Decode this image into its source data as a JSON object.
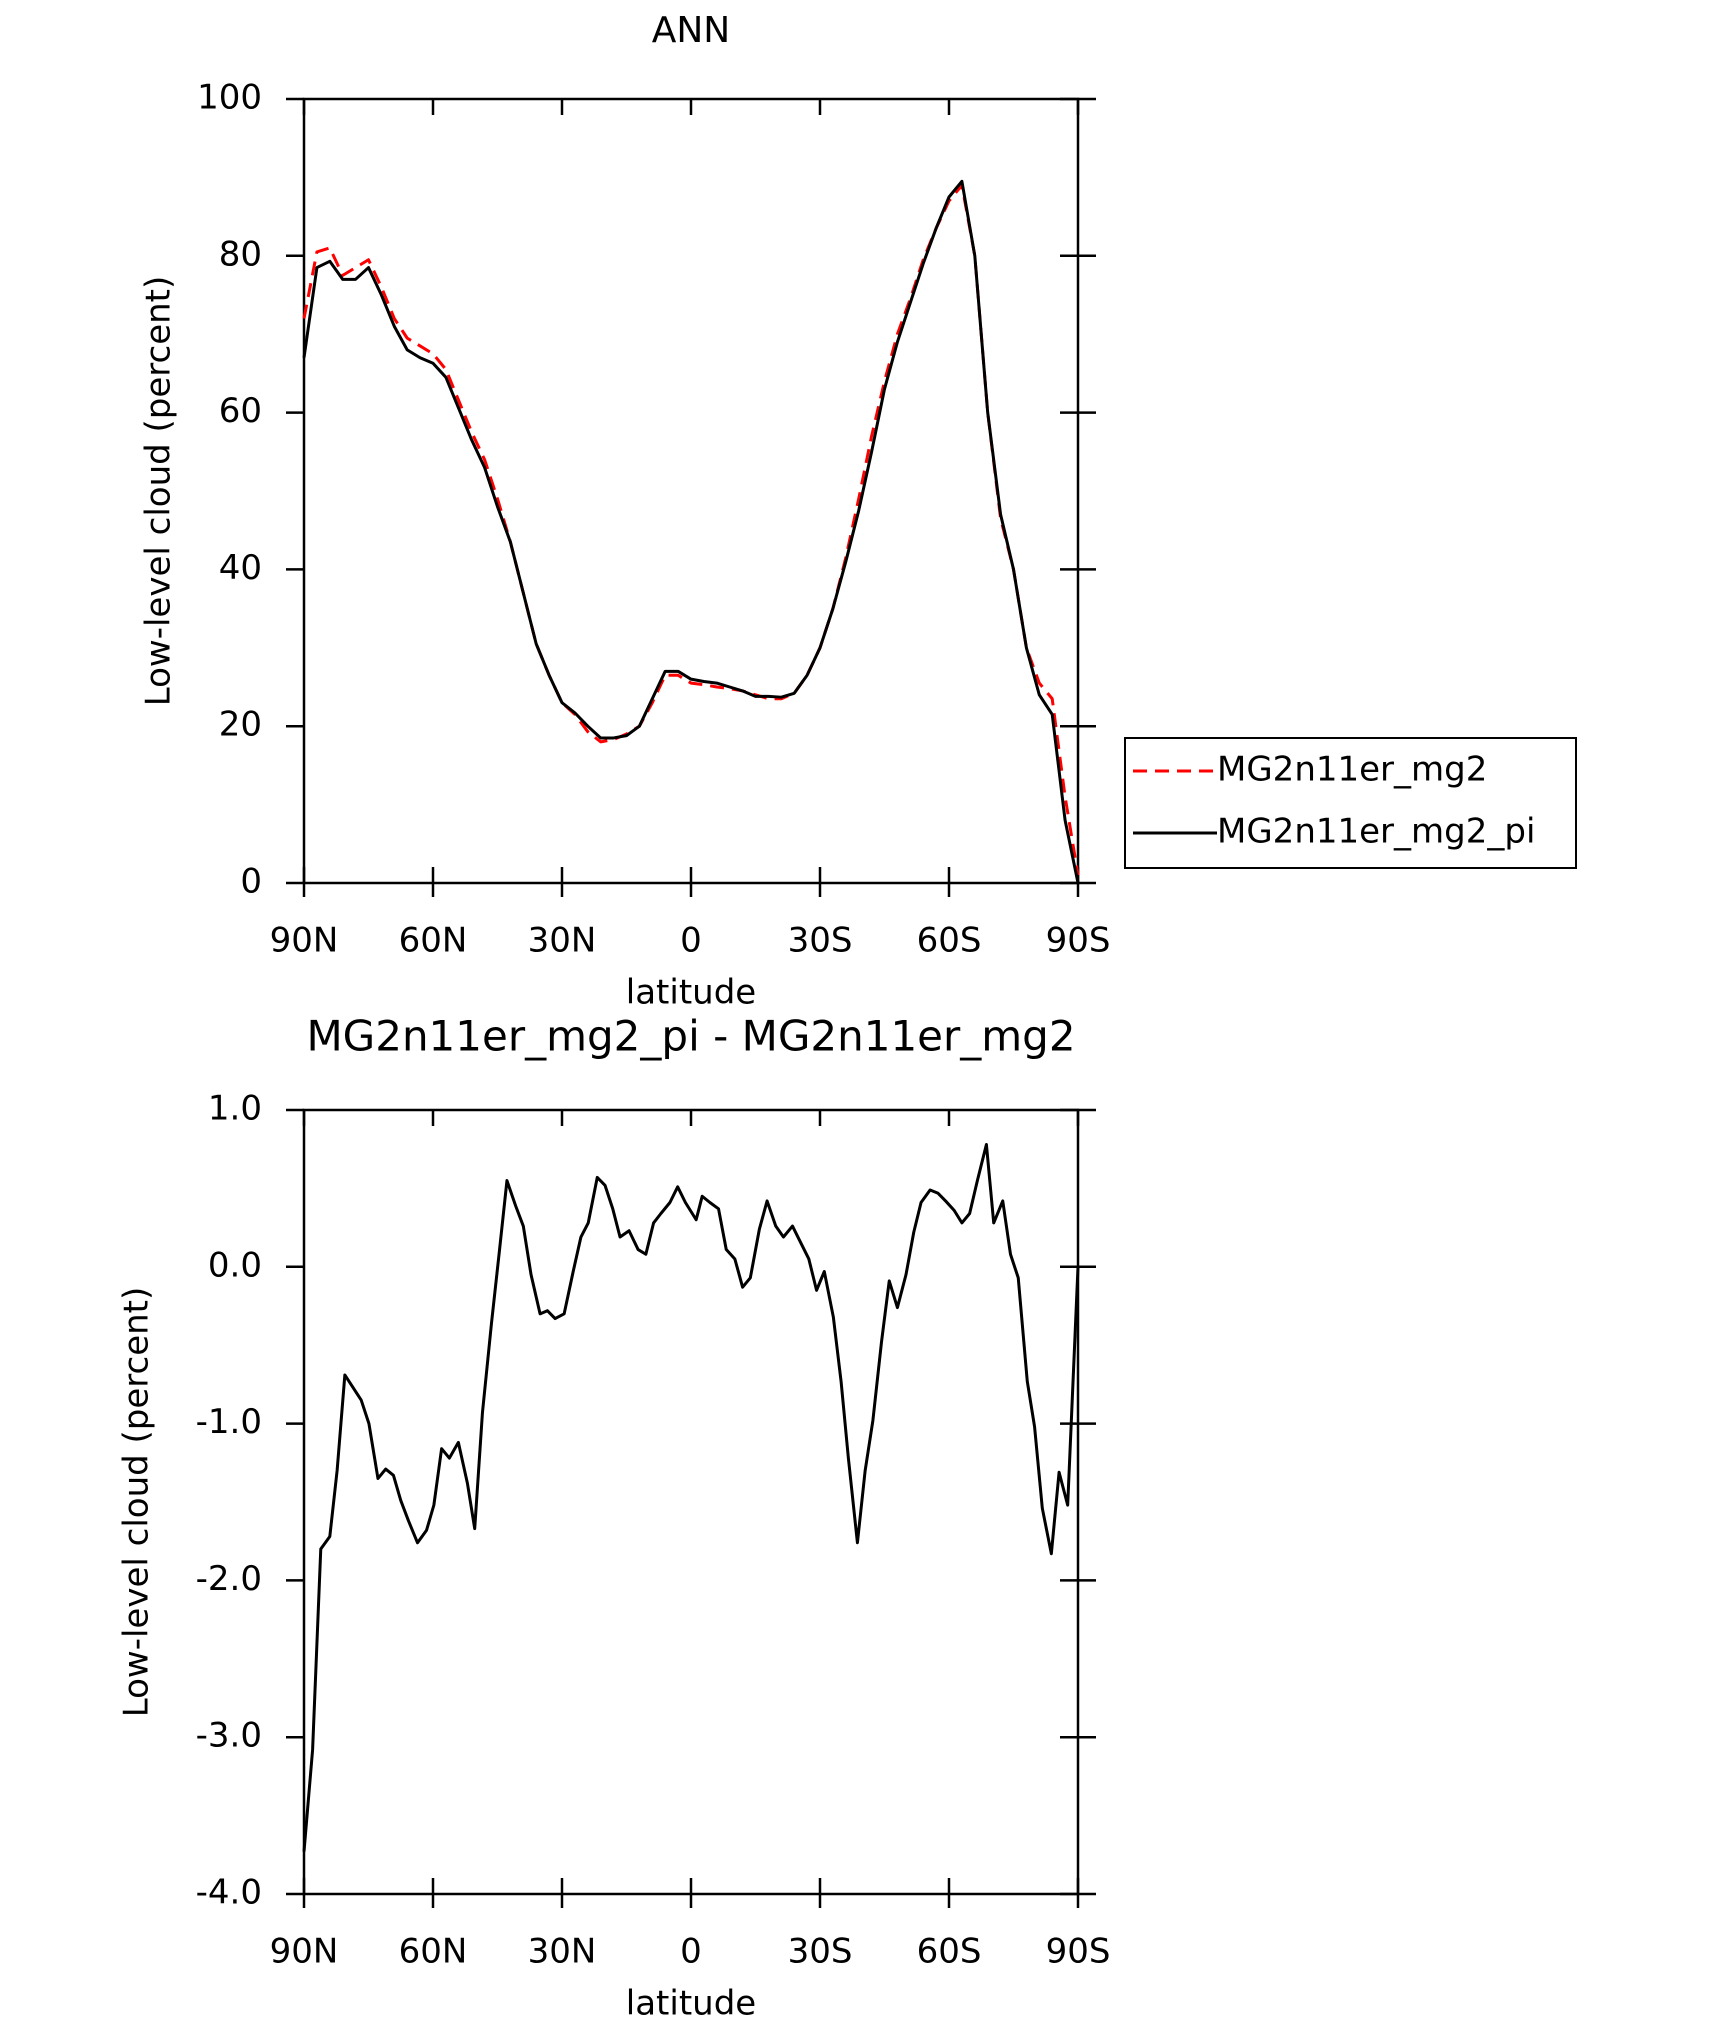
{
  "chart_data": [
    {
      "type": "line",
      "title": "ANN",
      "xlabel": "latitude",
      "ylabel": "Low-level cloud (percent)",
      "x": [
        90,
        87,
        84,
        81,
        78,
        75,
        72,
        69,
        66,
        63,
        60,
        57,
        54,
        51,
        48,
        45,
        42,
        39,
        36,
        33,
        30,
        27,
        24,
        21,
        18,
        15,
        12,
        9,
        6,
        3,
        0,
        -3,
        -6,
        -9,
        -12,
        -15,
        -18,
        -21,
        -24,
        -27,
        -30,
        -33,
        -36,
        -39,
        -42,
        -45,
        -48,
        -51,
        -54,
        -57,
        -60,
        -63,
        -66,
        -69,
        -72,
        -75,
        -78,
        -81,
        -84,
        -87,
        -90
      ],
      "series": [
        {
          "name": "MG2n11er_mg2",
          "color": "#ff0000",
          "dash": true,
          "values": [
            72,
            80.5,
            81,
            77.5,
            78.5,
            79.5,
            76,
            72,
            69.5,
            68.5,
            67.5,
            65.5,
            61.5,
            57.5,
            54,
            49,
            43.5,
            37,
            30.5,
            26.5,
            23,
            21.5,
            19.3,
            18,
            18.3,
            19,
            20,
            23,
            26.5,
            26.5,
            25.5,
            25.3,
            25,
            24.8,
            24.5,
            24,
            23.5,
            23.5,
            24.2,
            26.5,
            30,
            35,
            41.5,
            49,
            57,
            64,
            70,
            74.5,
            79.5,
            83.5,
            87,
            89,
            80,
            60,
            46.5,
            40,
            30,
            25.5,
            23.5,
            11,
            1
          ]
        },
        {
          "name": "MG2n11er_mg2_pi",
          "color": "#000000",
          "dash": false,
          "values": [
            67,
            78.5,
            79.3,
            77,
            77,
            78.5,
            75,
            71,
            68,
            67,
            66.3,
            64.5,
            60.5,
            56.5,
            53,
            48,
            43.5,
            37,
            30.5,
            26.5,
            23,
            21.7,
            20,
            18.5,
            18.5,
            18.8,
            20,
            23.5,
            27,
            27,
            26,
            25.7,
            25.5,
            25,
            24.5,
            23.8,
            23.8,
            23.7,
            24.2,
            26.5,
            30,
            35,
            41,
            47.5,
            55,
            63,
            69,
            74,
            79,
            83.5,
            87.5,
            89.5,
            80,
            60,
            47,
            40,
            30,
            24,
            21.5,
            8,
            0
          ]
        }
      ],
      "xlim": [
        90,
        -90
      ],
      "xticks": [
        {
          "value": 90,
          "label": "90N"
        },
        {
          "value": 60,
          "label": "60N"
        },
        {
          "value": 30,
          "label": "30N"
        },
        0,
        {
          "value": -30,
          "label": "30S"
        },
        {
          "value": -60,
          "label": "60S"
        },
        {
          "value": -90,
          "label": "90S"
        }
      ],
      "ylim": [
        0,
        100
      ],
      "yticks": [
        0,
        20,
        40,
        60,
        80,
        100
      ],
      "legend": "right"
    },
    {
      "type": "line",
      "title": "MG2n11er_mg2_pi - MG2n11er_mg2",
      "xlabel": "latitude",
      "ylabel": "Low-level cloud (percent)",
      "x": [
        90,
        88,
        86.1,
        84,
        82.3,
        80.5,
        76.7,
        74.9,
        72.8,
        71,
        69.2,
        67.5,
        65.7,
        63.6,
        61.5,
        59.8,
        58,
        56.2,
        54.1,
        52,
        50.3,
        48.5,
        46.4,
        44.6,
        42.8,
        40.8,
        39,
        37.2,
        35.1,
        33.4,
        31.6,
        29.5,
        27.4,
        25.6,
        23.9,
        21.8,
        20,
        18.2,
        16.5,
        14.4,
        12.3,
        10.5,
        8.7,
        7,
        4.9,
        3.1,
        1.3,
        -1.2,
        -2.6,
        -4.4,
        -6.4,
        -8.2,
        -10.2,
        -12,
        -13.8,
        -15.9,
        -17.7,
        -19.7,
        -21.5,
        -23.6,
        -25.4,
        -27.4,
        -29.2,
        -31,
        -33.1,
        -34.9,
        -36.6,
        -38.7,
        -40.5,
        -42.3,
        -44.3,
        -46.1,
        -48,
        -50,
        -51.8,
        -53.5,
        -55.6,
        -57.4,
        -59.2,
        -61.2,
        -63,
        -64.8,
        -66.6,
        -68.7,
        -70.4,
        -72.5,
        -74.3,
        -76.1,
        -78.2,
        -79.9,
        -81.7,
        -83.8,
        -85.6,
        -87.6,
        -90
      ],
      "series": [
        {
          "color": "#000000",
          "dash": false,
          "values": [
            -3.73,
            -3.08,
            -1.8,
            -1.72,
            -1.3,
            -0.69,
            -0.85,
            -1.0,
            -1.35,
            -1.29,
            -1.33,
            -1.49,
            -1.62,
            -1.76,
            -1.68,
            -1.52,
            -1.16,
            -1.22,
            -1.12,
            -1.38,
            -1.67,
            -0.93,
            -0.36,
            0.09,
            0.55,
            0.39,
            0.26,
            -0.05,
            -0.3,
            -0.28,
            -0.33,
            -0.3,
            -0.03,
            0.19,
            0.28,
            0.57,
            0.52,
            0.37,
            0.19,
            0.23,
            0.11,
            0.08,
            0.28,
            0.34,
            0.41,
            0.51,
            0.41,
            0.3,
            0.45,
            0.41,
            0.37,
            0.11,
            0.05,
            -0.13,
            -0.07,
            0.24,
            0.42,
            0.26,
            0.19,
            0.26,
            0.16,
            0.05,
            -0.15,
            -0.03,
            -0.32,
            -0.73,
            -1.22,
            -1.76,
            -1.3,
            -0.98,
            -0.48,
            -0.09,
            -0.26,
            -0.05,
            0.22,
            0.41,
            0.49,
            0.47,
            0.42,
            0.36,
            0.28,
            0.34,
            0.55,
            0.78,
            0.28,
            0.42,
            0.08,
            -0.07,
            -0.73,
            -1.02,
            -1.54,
            -1.83,
            -1.31,
            -1.52,
            0.0
          ]
        }
      ],
      "xlim": [
        90,
        -90
      ],
      "xticks": [
        {
          "value": 90,
          "label": "90N"
        },
        {
          "value": 60,
          "label": "60N"
        },
        {
          "value": 30,
          "label": "30N"
        },
        0,
        {
          "value": -30,
          "label": "30S"
        },
        {
          "value": -60,
          "label": "60S"
        },
        {
          "value": -90,
          "label": "90S"
        }
      ],
      "ylim": [
        -4,
        1
      ],
      "yticks": [
        {
          "value": 1,
          "label": "1.0"
        },
        {
          "value": 0,
          "label": "0.0"
        },
        {
          "value": -1,
          "label": "-1.0"
        },
        {
          "value": -2,
          "label": "-2.0"
        },
        {
          "value": -3,
          "label": "-3.0"
        },
        {
          "value": -4,
          "label": "-4.0"
        }
      ]
    }
  ]
}
